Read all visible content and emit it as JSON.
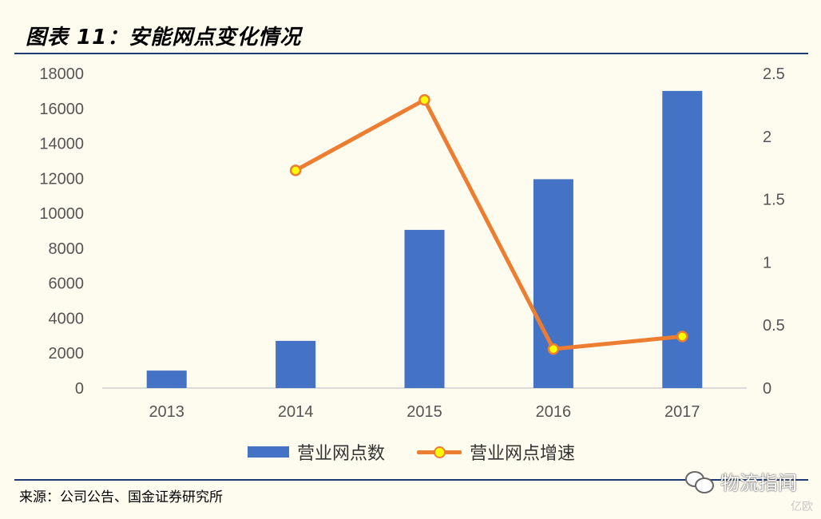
{
  "header": {
    "title": "图表 11：安能网点变化情况"
  },
  "chart_data": {
    "type": "bar",
    "categories": [
      "2013",
      "2014",
      "2015",
      "2016",
      "2017"
    ],
    "series": [
      {
        "name": "营业网点数",
        "type": "bar",
        "axis": "left",
        "color": "#4472c4",
        "values": [
          1000,
          2700,
          9050,
          11950,
          17000
        ]
      },
      {
        "name": "营业网点增速",
        "type": "line",
        "axis": "right",
        "color": "#ed7d31",
        "marker_fill": "#ffff00",
        "marker_stroke": "#ed7d31",
        "values": [
          null,
          1.73,
          2.29,
          0.31,
          0.41
        ]
      }
    ],
    "y_left": {
      "ylim": [
        0,
        18000
      ],
      "ticks": [
        "0",
        "2000",
        "4000",
        "6000",
        "8000",
        "10000",
        "12000",
        "14000",
        "16000",
        "18000"
      ]
    },
    "y_right": {
      "ylim": [
        0,
        2.5
      ],
      "ticks": [
        "0",
        "0.5",
        "1",
        "1.5",
        "2",
        "2.5"
      ]
    },
    "grid": false,
    "legend": "bottom"
  },
  "footer": {
    "source": "来源：公司公告、国金证券研究所",
    "watermark": "物流指闻",
    "watermark_sub": "亿欧"
  }
}
